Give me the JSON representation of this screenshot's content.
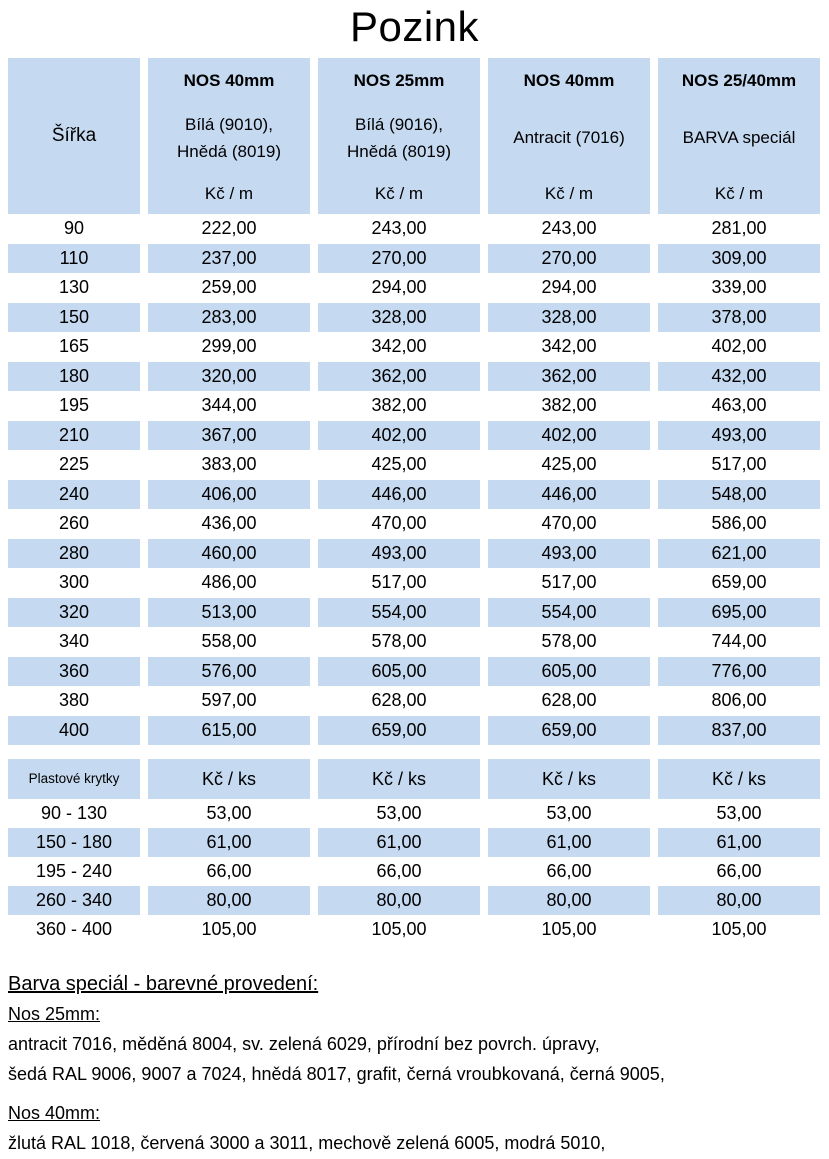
{
  "title": "Pozink",
  "colors": {
    "cell_blue": "#c5d9f1",
    "text": "#000000"
  },
  "price_table": {
    "width_label": "Šířka",
    "columns": [
      {
        "name": "NOS 40mm",
        "variant": "Bílá (9010),\nHnědá (8019)",
        "unit": "Kč / m"
      },
      {
        "name": "NOS 25mm",
        "variant": "Bílá (9016),\nHnědá (8019)",
        "unit": "Kč / m"
      },
      {
        "name": "NOS 40mm",
        "variant": "Antracit (7016)",
        "unit": "Kč / m"
      },
      {
        "name": "NOS 25/40mm",
        "variant": "BARVA speciál",
        "unit": "Kč / m"
      }
    ],
    "rows": [
      {
        "width": "90",
        "prices": [
          "222,00",
          "243,00",
          "243,00",
          "281,00"
        ]
      },
      {
        "width": "110",
        "prices": [
          "237,00",
          "270,00",
          "270,00",
          "309,00"
        ]
      },
      {
        "width": "130",
        "prices": [
          "259,00",
          "294,00",
          "294,00",
          "339,00"
        ]
      },
      {
        "width": "150",
        "prices": [
          "283,00",
          "328,00",
          "328,00",
          "378,00"
        ]
      },
      {
        "width": "165",
        "prices": [
          "299,00",
          "342,00",
          "342,00",
          "402,00"
        ]
      },
      {
        "width": "180",
        "prices": [
          "320,00",
          "362,00",
          "362,00",
          "432,00"
        ]
      },
      {
        "width": "195",
        "prices": [
          "344,00",
          "382,00",
          "382,00",
          "463,00"
        ]
      },
      {
        "width": "210",
        "prices": [
          "367,00",
          "402,00",
          "402,00",
          "493,00"
        ]
      },
      {
        "width": "225",
        "prices": [
          "383,00",
          "425,00",
          "425,00",
          "517,00"
        ]
      },
      {
        "width": "240",
        "prices": [
          "406,00",
          "446,00",
          "446,00",
          "548,00"
        ]
      },
      {
        "width": "260",
        "prices": [
          "436,00",
          "470,00",
          "470,00",
          "586,00"
        ]
      },
      {
        "width": "280",
        "prices": [
          "460,00",
          "493,00",
          "493,00",
          "621,00"
        ]
      },
      {
        "width": "300",
        "prices": [
          "486,00",
          "517,00",
          "517,00",
          "659,00"
        ]
      },
      {
        "width": "320",
        "prices": [
          "513,00",
          "554,00",
          "554,00",
          "695,00"
        ]
      },
      {
        "width": "340",
        "prices": [
          "558,00",
          "578,00",
          "578,00",
          "744,00"
        ]
      },
      {
        "width": "360",
        "prices": [
          "576,00",
          "605,00",
          "605,00",
          "776,00"
        ]
      },
      {
        "width": "380",
        "prices": [
          "597,00",
          "628,00",
          "628,00",
          "806,00"
        ]
      },
      {
        "width": "400",
        "prices": [
          "615,00",
          "659,00",
          "659,00",
          "837,00"
        ]
      }
    ]
  },
  "caps_table": {
    "label": "Plastové krytky",
    "unit": "Kč / ks",
    "rows": [
      {
        "range": "90  - 130",
        "prices": [
          "53,00",
          "53,00",
          "53,00",
          "53,00"
        ]
      },
      {
        "range": "150 - 180",
        "prices": [
          "61,00",
          "61,00",
          "61,00",
          "61,00"
        ]
      },
      {
        "range": "195 - 240",
        "prices": [
          "66,00",
          "66,00",
          "66,00",
          "66,00"
        ]
      },
      {
        "range": "260 - 340",
        "prices": [
          "80,00",
          "80,00",
          "80,00",
          "80,00"
        ]
      },
      {
        "range": "360 - 400",
        "prices": [
          "105,00",
          "105,00",
          "105,00",
          "105,00"
        ]
      }
    ]
  },
  "notes": {
    "heading": "Barva speciál - barevné provedení:",
    "sections": [
      {
        "subheading": "Nos 25mm:",
        "lines": [
          "antracit 7016, měděná 8004,  sv. zelená 6029, přírodní bez povrch. úpravy,",
          "šedá RAL 9006, 9007 a 7024, hnědá 8017, grafit, černá vroubkovaná, černá 9005,"
        ]
      },
      {
        "subheading": "Nos 40mm:",
        "lines": [
          "žlutá RAL 1018, červená 3000 a 3011, mechově zelená 6005, modrá 5010,"
        ]
      }
    ]
  }
}
